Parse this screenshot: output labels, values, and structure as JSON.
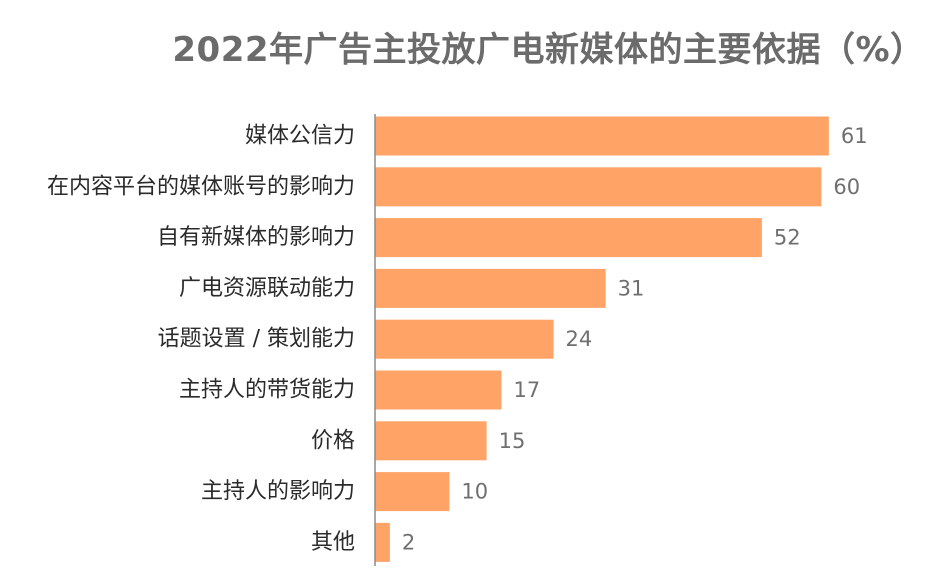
{
  "chart_data": {
    "type": "bar",
    "orientation": "horizontal",
    "title": "2022年广告主投放广电新媒体的主要依据（%）",
    "categories": [
      "媒体公信力",
      "在内容平台的媒体账号的影响力",
      "自有新媒体的影响力",
      "广电资源联动能力",
      "话题设置 / 策划能力",
      "主持人的带货能力",
      "价格",
      "主持人的影响力",
      "其他"
    ],
    "values": [
      61,
      60,
      52,
      31,
      24,
      17,
      15,
      10,
      2
    ],
    "xlim": [
      0,
      70
    ],
    "grid": false,
    "legend": "none",
    "bar_color": "#FFA366",
    "axis_color": "#8c8c8c"
  }
}
